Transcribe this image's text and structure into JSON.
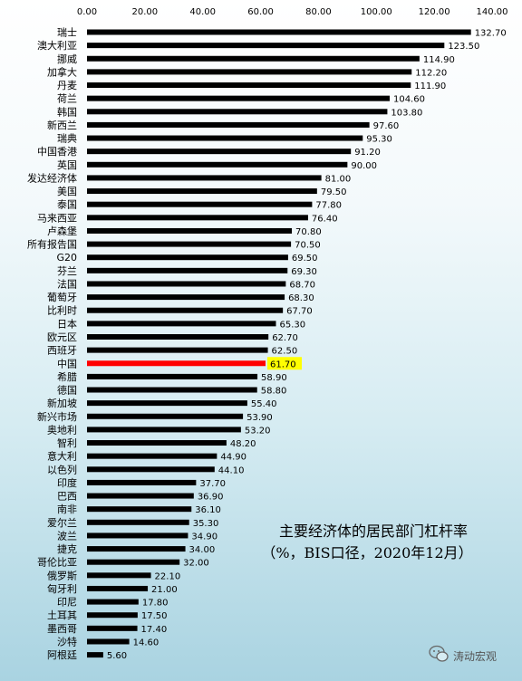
{
  "chart_data": {
    "type": "bar",
    "orientation": "horizontal",
    "title": "主要经济体的居民部门杠杆率",
    "subtitle": "（%，BIS口径，2020年12月）",
    "xlabel": "",
    "ylabel": "",
    "xlim": [
      0,
      140
    ],
    "ticks": [
      "0.00",
      "20.00",
      "40.00",
      "60.00",
      "80.00",
      "100.00",
      "120.00",
      "140.00"
    ],
    "tick_values": [
      0,
      20,
      40,
      60,
      80,
      100,
      120,
      140
    ],
    "grid": false,
    "legend": "none",
    "bar_color": "#000000",
    "highlight_color": "#ff0000",
    "highlight_label_bg": "#ffff00",
    "highlight_category": "中国",
    "categories": [
      "瑞士",
      "澳大利亚",
      "挪威",
      "加拿大",
      "丹麦",
      "荷兰",
      "韩国",
      "新西兰",
      "瑞典",
      "中国香港",
      "英国",
      "发达经济体",
      "美国",
      "泰国",
      "马来西亚",
      "卢森堡",
      "所有报告国",
      "G20",
      "芬兰",
      "法国",
      "葡萄牙",
      "比利时",
      "日本",
      "欧元区",
      "西班牙",
      "中国",
      "希腊",
      "德国",
      "新加坡",
      "新兴市场",
      "奥地利",
      "智利",
      "意大利",
      "以色列",
      "印度",
      "巴西",
      "南非",
      "爱尔兰",
      "波兰",
      "捷克",
      "哥伦比亚",
      "俄罗斯",
      "匈牙利",
      "印尼",
      "土耳其",
      "墨西哥",
      "沙特",
      "阿根廷"
    ],
    "values": [
      132.7,
      123.5,
      114.9,
      112.2,
      111.9,
      104.6,
      103.8,
      97.6,
      95.3,
      91.2,
      90.0,
      81.0,
      79.5,
      77.8,
      76.4,
      70.8,
      70.5,
      69.5,
      69.3,
      68.7,
      68.3,
      67.7,
      65.3,
      62.7,
      62.5,
      61.7,
      58.9,
      58.8,
      55.4,
      53.9,
      53.2,
      48.2,
      44.9,
      44.1,
      37.7,
      36.9,
      36.1,
      35.3,
      34.9,
      34.0,
      32.0,
      22.1,
      21.0,
      17.8,
      17.5,
      17.4,
      14.6,
      5.6
    ],
    "value_labels": [
      "132.70",
      "123.50",
      "114.90",
      "112.20",
      "111.90",
      "104.60",
      "103.80",
      "97.60",
      "95.30",
      "91.20",
      "90.00",
      "81.00",
      "79.50",
      "77.80",
      "76.40",
      "70.80",
      "70.50",
      "69.50",
      "69.30",
      "68.70",
      "68.30",
      "67.70",
      "65.30",
      "62.70",
      "62.50",
      "61.70",
      "58.90",
      "58.80",
      "55.40",
      "53.90",
      "53.20",
      "48.20",
      "44.90",
      "44.10",
      "37.70",
      "36.90",
      "36.10",
      "35.30",
      "34.90",
      "34.00",
      "32.00",
      "22.10",
      "21.00",
      "17.80",
      "17.50",
      "17.40",
      "14.60",
      "5.60"
    ]
  },
  "watermark": {
    "text": "涛动宏观",
    "icon": "wechat-icon"
  }
}
